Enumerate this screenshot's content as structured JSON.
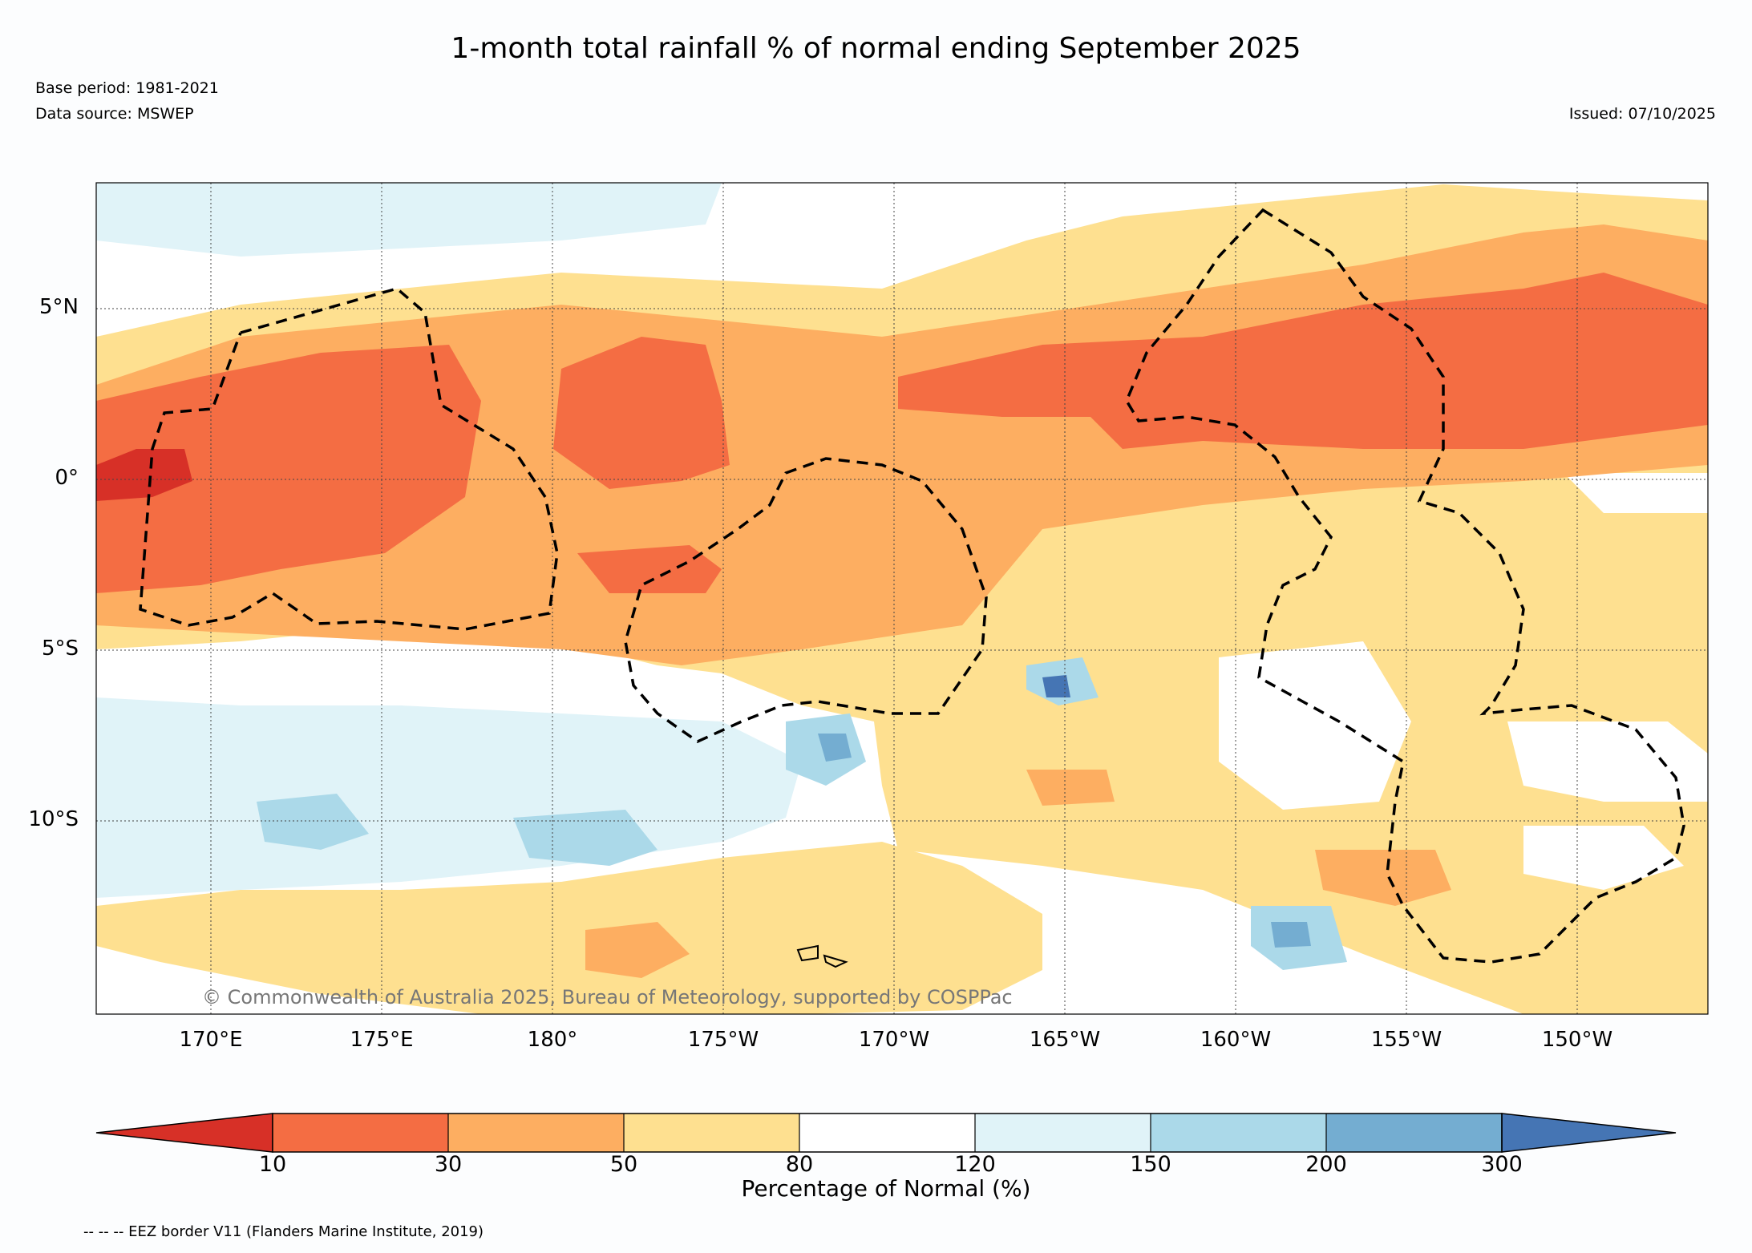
{
  "header": {
    "title": "1-month total rainfall % of normal ending September 2025",
    "base_period": "Base period: 1981-2021",
    "data_source": "Data source: MSWEP",
    "issued": "Issued: 07/10/2025"
  },
  "map": {
    "lat_labels": [
      "5°N",
      "0°",
      "5°S",
      "10°S"
    ],
    "lon_labels": [
      "170°E",
      "175°E",
      "180°",
      "175°W",
      "170°W",
      "165°W",
      "160°W",
      "155°W",
      "150°W"
    ],
    "copyright": "© Commonwealth of Australia 2025, Bureau of Meteorology, supported by COSPPac",
    "categories": [
      {
        "range": "<10",
        "color": "#d73027"
      },
      {
        "range": "10-30",
        "color": "#f46d43"
      },
      {
        "range": "30-50",
        "color": "#fdae61"
      },
      {
        "range": "50-80",
        "color": "#fee090"
      },
      {
        "range": "80-120",
        "color": "#ffffff"
      },
      {
        "range": "120-150",
        "color": "#e0f3f8"
      },
      {
        "range": "150-200",
        "color": "#abd9e9"
      },
      {
        "range": "200-300",
        "color": "#74add1"
      },
      {
        "range": ">300",
        "color": "#4575b4"
      }
    ]
  },
  "colorbar": {
    "ticks": [
      "10",
      "30",
      "50",
      "80",
      "120",
      "150",
      "200",
      "300"
    ],
    "title": "Percentage of Normal (%)"
  },
  "footnote": "-- -- -- EEZ border V11 (Flanders Marine Institute, 2019)"
}
